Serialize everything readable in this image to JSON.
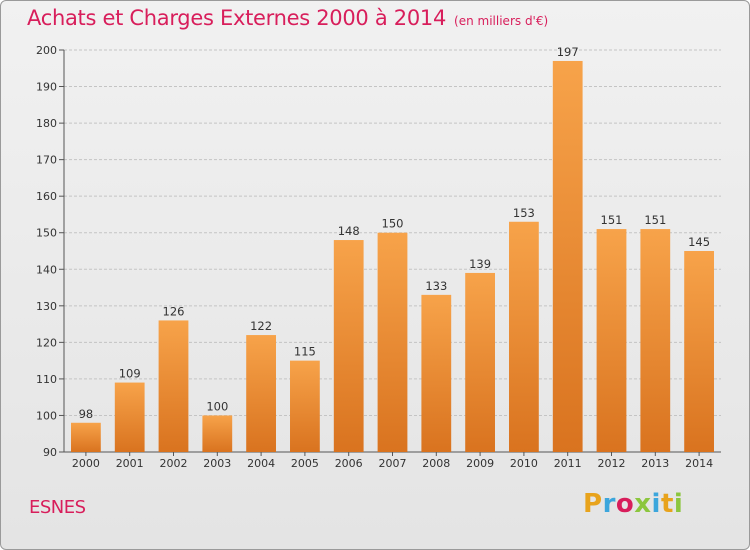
{
  "chart": {
    "title": "Achats et Charges Externes 2000 à 2014",
    "subtitle": "(en milliers d'€)",
    "place": "ESNES"
  },
  "logo": {
    "letters": [
      "P",
      "r",
      "o",
      "x",
      "i",
      "t",
      "i"
    ],
    "colors": [
      "#e8a31c",
      "#3ca6dc",
      "#d81e5b",
      "#8cc63e",
      "#3ca6dc",
      "#e8a31c",
      "#8cc63e"
    ]
  },
  "colors": {
    "bar_light": "#f7a34a",
    "bar_dark": "#d9731f",
    "accent": "#d81e5b"
  },
  "chart_data": {
    "type": "bar",
    "title": "Achats et Charges Externes 2000 à 2014",
    "subtitle": "(en milliers d'€)",
    "categories": [
      "2000",
      "2001",
      "2002",
      "2003",
      "2004",
      "2005",
      "2006",
      "2007",
      "2008",
      "2009",
      "2010",
      "2011",
      "2012",
      "2013",
      "2014"
    ],
    "values": [
      98,
      109,
      126,
      100,
      122,
      115,
      148,
      150,
      133,
      139,
      153,
      197,
      151,
      151,
      145
    ],
    "ylim": [
      90,
      200
    ],
    "yticks": [
      90,
      100,
      110,
      120,
      130,
      140,
      150,
      160,
      170,
      180,
      190,
      200
    ],
    "grid": true,
    "data_labels": true
  }
}
